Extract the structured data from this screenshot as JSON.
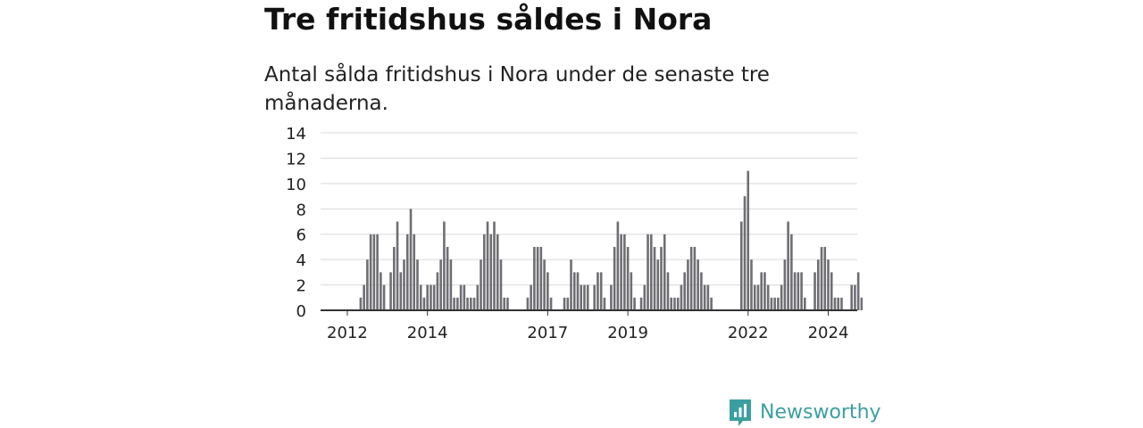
{
  "headline": "Tre fritidshus såldes i Nora",
  "subtitle": "Antal sålda fritidshus i Nora under de senaste tre månaderna.",
  "brand": {
    "name": "Newsworthy",
    "color": "#3c9f9f",
    "logo_icon": "newsworthy-chart-icon"
  },
  "colors": {
    "bar": "#6e6e73",
    "highlight": "#2aa5a5",
    "grid": "#d9d9d9",
    "axis": "#333333"
  },
  "chart_data": {
    "type": "bar",
    "title": "Tre fritidshus såldes i Nora",
    "subtitle": "Antal sålda fritidshus i Nora under de senaste tre månaderna.",
    "xlabel": "",
    "ylabel": "",
    "ylim": [
      0,
      14
    ],
    "yticks": [
      0,
      2,
      4,
      6,
      8,
      10,
      12,
      14
    ],
    "x_tick_labels": [
      {
        "label": "2012",
        "x": 2012.0
      },
      {
        "label": "2014",
        "x": 2014.0
      },
      {
        "label": "2017",
        "x": 2017.0
      },
      {
        "label": "2019",
        "x": 2019.0
      },
      {
        "label": "2022",
        "x": 2022.0
      },
      {
        "label": "2024",
        "x": 2024.0
      }
    ],
    "grid": "horizontal",
    "x_start": 2011.5,
    "highlight_last": true,
    "last_value_label": "3",
    "series": [
      {
        "values": [
          0,
          0,
          0,
          0,
          0,
          0,
          0,
          0,
          0,
          0,
          1,
          2,
          4,
          6,
          6,
          6,
          3,
          2,
          0,
          3,
          5,
          7,
          3,
          4,
          6,
          8,
          6,
          4,
          2,
          1,
          2,
          2,
          2,
          3,
          4,
          7,
          5,
          4,
          1,
          1,
          2,
          2,
          1,
          1,
          1,
          2,
          4,
          6,
          7,
          6,
          7,
          6,
          4,
          1,
          1,
          0,
          0,
          0,
          0,
          0,
          1,
          2,
          5,
          5,
          5,
          4,
          3,
          1,
          0,
          0,
          0,
          1,
          1,
          4,
          3,
          3,
          2,
          2,
          2,
          0,
          2,
          3,
          3,
          1,
          0,
          2,
          5,
          7,
          6,
          6,
          5,
          3,
          1,
          0,
          1,
          2,
          6,
          6,
          5,
          4,
          5,
          6,
          3,
          1,
          1,
          1,
          2,
          3,
          4,
          5,
          5,
          4,
          3,
          2,
          2,
          1,
          0,
          0,
          0,
          0,
          0,
          0,
          0,
          0,
          7,
          9,
          11,
          4,
          2,
          2,
          3,
          3,
          2,
          1,
          1,
          1,
          2,
          4,
          7,
          6,
          3,
          3,
          3,
          1,
          0,
          0,
          3,
          4,
          5,
          5,
          4,
          3,
          1,
          1,
          1,
          0,
          0,
          2,
          2,
          3,
          1,
          2,
          2,
          2,
          1,
          0,
          2,
          3
        ]
      }
    ]
  }
}
